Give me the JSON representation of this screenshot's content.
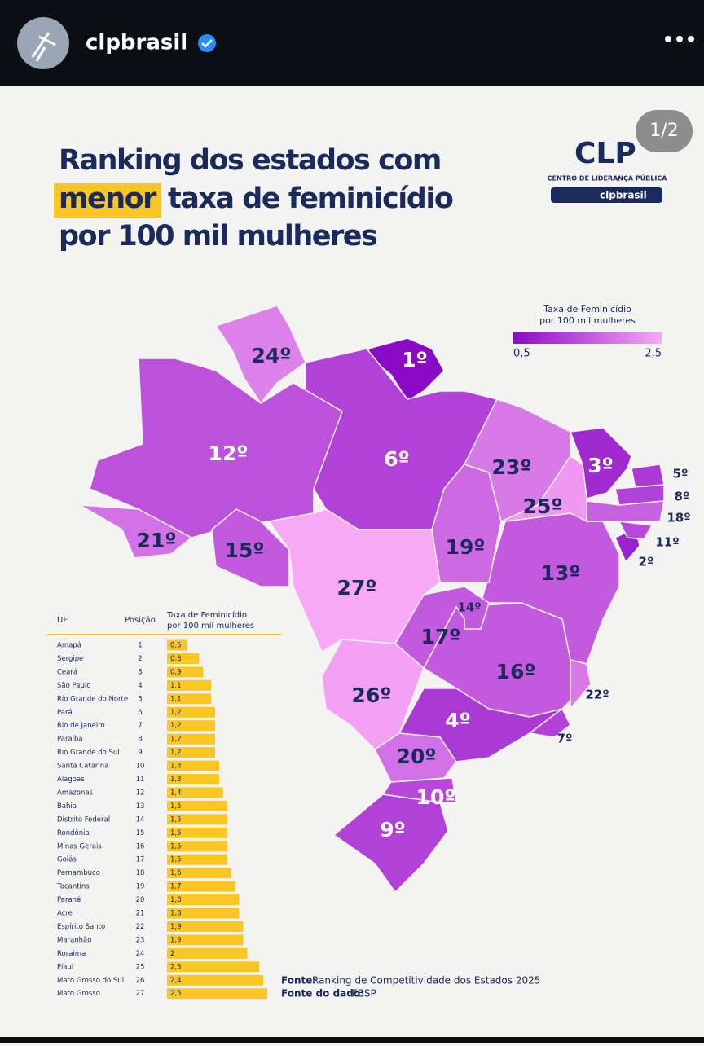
{
  "header": {
    "account": "clpbrasil",
    "menu": "•••"
  },
  "post": {
    "counter": "1/2",
    "title": {
      "line1": "Ranking dos estados com",
      "highlight": "menor",
      "line2_rest": "taxa de feminicídio",
      "line3": "por 100 mil mulheres"
    },
    "logo": {
      "mark": "CLP",
      "subtitle": "CENTRO DE LIDERANÇA PÚBLICA",
      "handle": "clpbrasil"
    },
    "legend": {
      "title_line1": "Taxa de Feminicídio",
      "title_line2": "por 100 mil mulheres",
      "min": {
        "value": 0.5,
        "label": "0,5"
      },
      "max": {
        "value": 2.5,
        "label": "2,5"
      },
      "color_low": "#8a0ac6",
      "color_high": "#f9a8f6"
    },
    "table": {
      "headers": {
        "uf": "UF",
        "position": "Posição",
        "rate_line1": "Taxa de Feminicídio",
        "rate_line2": "por 100 mil mulheres"
      },
      "bar_color": "#f9c623",
      "rows": [
        {
          "uf": "Amapá",
          "position": 1,
          "rate": 0.5,
          "rate_label": "0,5",
          "map_label": "1º"
        },
        {
          "uf": "Sergipe",
          "position": 2,
          "rate": 0.8,
          "rate_label": "0,8",
          "map_label": "2º"
        },
        {
          "uf": "Ceará",
          "position": 3,
          "rate": 0.9,
          "rate_label": "0,9",
          "map_label": "3º"
        },
        {
          "uf": "São Paulo",
          "position": 4,
          "rate": 1.1,
          "rate_label": "1,1",
          "map_label": "4º"
        },
        {
          "uf": "Rio Grande do Norte",
          "position": 5,
          "rate": 1.1,
          "rate_label": "1,1",
          "map_label": "5º"
        },
        {
          "uf": "Pará",
          "position": 6,
          "rate": 1.2,
          "rate_label": "1,2",
          "map_label": "6º"
        },
        {
          "uf": "Rio de Janeiro",
          "position": 7,
          "rate": 1.2,
          "rate_label": "1,2",
          "map_label": "7º"
        },
        {
          "uf": "Paraíba",
          "position": 8,
          "rate": 1.2,
          "rate_label": "1,2",
          "map_label": "8º"
        },
        {
          "uf": "Rio Grande do Sul",
          "position": 9,
          "rate": 1.2,
          "rate_label": "1,2",
          "map_label": "9º"
        },
        {
          "uf": "Santa Catarina",
          "position": 10,
          "rate": 1.3,
          "rate_label": "1,3",
          "map_label": "10º"
        },
        {
          "uf": "Alagoas",
          "position": 11,
          "rate": 1.3,
          "rate_label": "1,3",
          "map_label": "11º"
        },
        {
          "uf": "Amazonas",
          "position": 12,
          "rate": 1.4,
          "rate_label": "1,4",
          "map_label": "12º"
        },
        {
          "uf": "Bahia",
          "position": 13,
          "rate": 1.5,
          "rate_label": "1,5",
          "map_label": "13º"
        },
        {
          "uf": "Distrito Federal",
          "position": 14,
          "rate": 1.5,
          "rate_label": "1,5",
          "map_label": "14º"
        },
        {
          "uf": "Rondônia",
          "position": 15,
          "rate": 1.5,
          "rate_label": "1,5",
          "map_label": "15º"
        },
        {
          "uf": "Minas Gerais",
          "position": 16,
          "rate": 1.5,
          "rate_label": "1,5",
          "map_label": "16º"
        },
        {
          "uf": "Goiás",
          "position": 17,
          "rate": 1.5,
          "rate_label": "1,5",
          "map_label": "17º"
        },
        {
          "uf": "Pernambuco",
          "position": 18,
          "rate": 1.6,
          "rate_label": "1,6",
          "map_label": "18º"
        },
        {
          "uf": "Tocantins",
          "position": 19,
          "rate": 1.7,
          "rate_label": "1,7",
          "map_label": "19º"
        },
        {
          "uf": "Paraná",
          "position": 20,
          "rate": 1.8,
          "rate_label": "1,8",
          "map_label": "20º"
        },
        {
          "uf": "Acre",
          "position": 21,
          "rate": 1.8,
          "rate_label": "1,8",
          "map_label": "21º"
        },
        {
          "uf": "Espírito Santo",
          "position": 22,
          "rate": 1.9,
          "rate_label": "1,9",
          "map_label": "22º"
        },
        {
          "uf": "Maranhão",
          "position": 23,
          "rate": 1.9,
          "rate_label": "1,9",
          "map_label": "23º"
        },
        {
          "uf": "Roraima",
          "position": 24,
          "rate": 2,
          "rate_label": "2",
          "map_label": "24º"
        },
        {
          "uf": "Piauí",
          "position": 25,
          "rate": 2.3,
          "rate_label": "2,3",
          "map_label": "25º"
        },
        {
          "uf": "Mato Grosso do Sul",
          "position": 26,
          "rate": 2.4,
          "rate_label": "2,4",
          "map_label": "26º"
        },
        {
          "uf": "Mato Grosso",
          "position": 27,
          "rate": 2.5,
          "rate_label": "2,5",
          "map_label": "27º"
        }
      ]
    },
    "source": {
      "label1": "Fonte:",
      "text1": "Ranking de Competitividade dos Estados 2025",
      "label2": "Fonte do dado:",
      "text2": "FBSP"
    }
  }
}
